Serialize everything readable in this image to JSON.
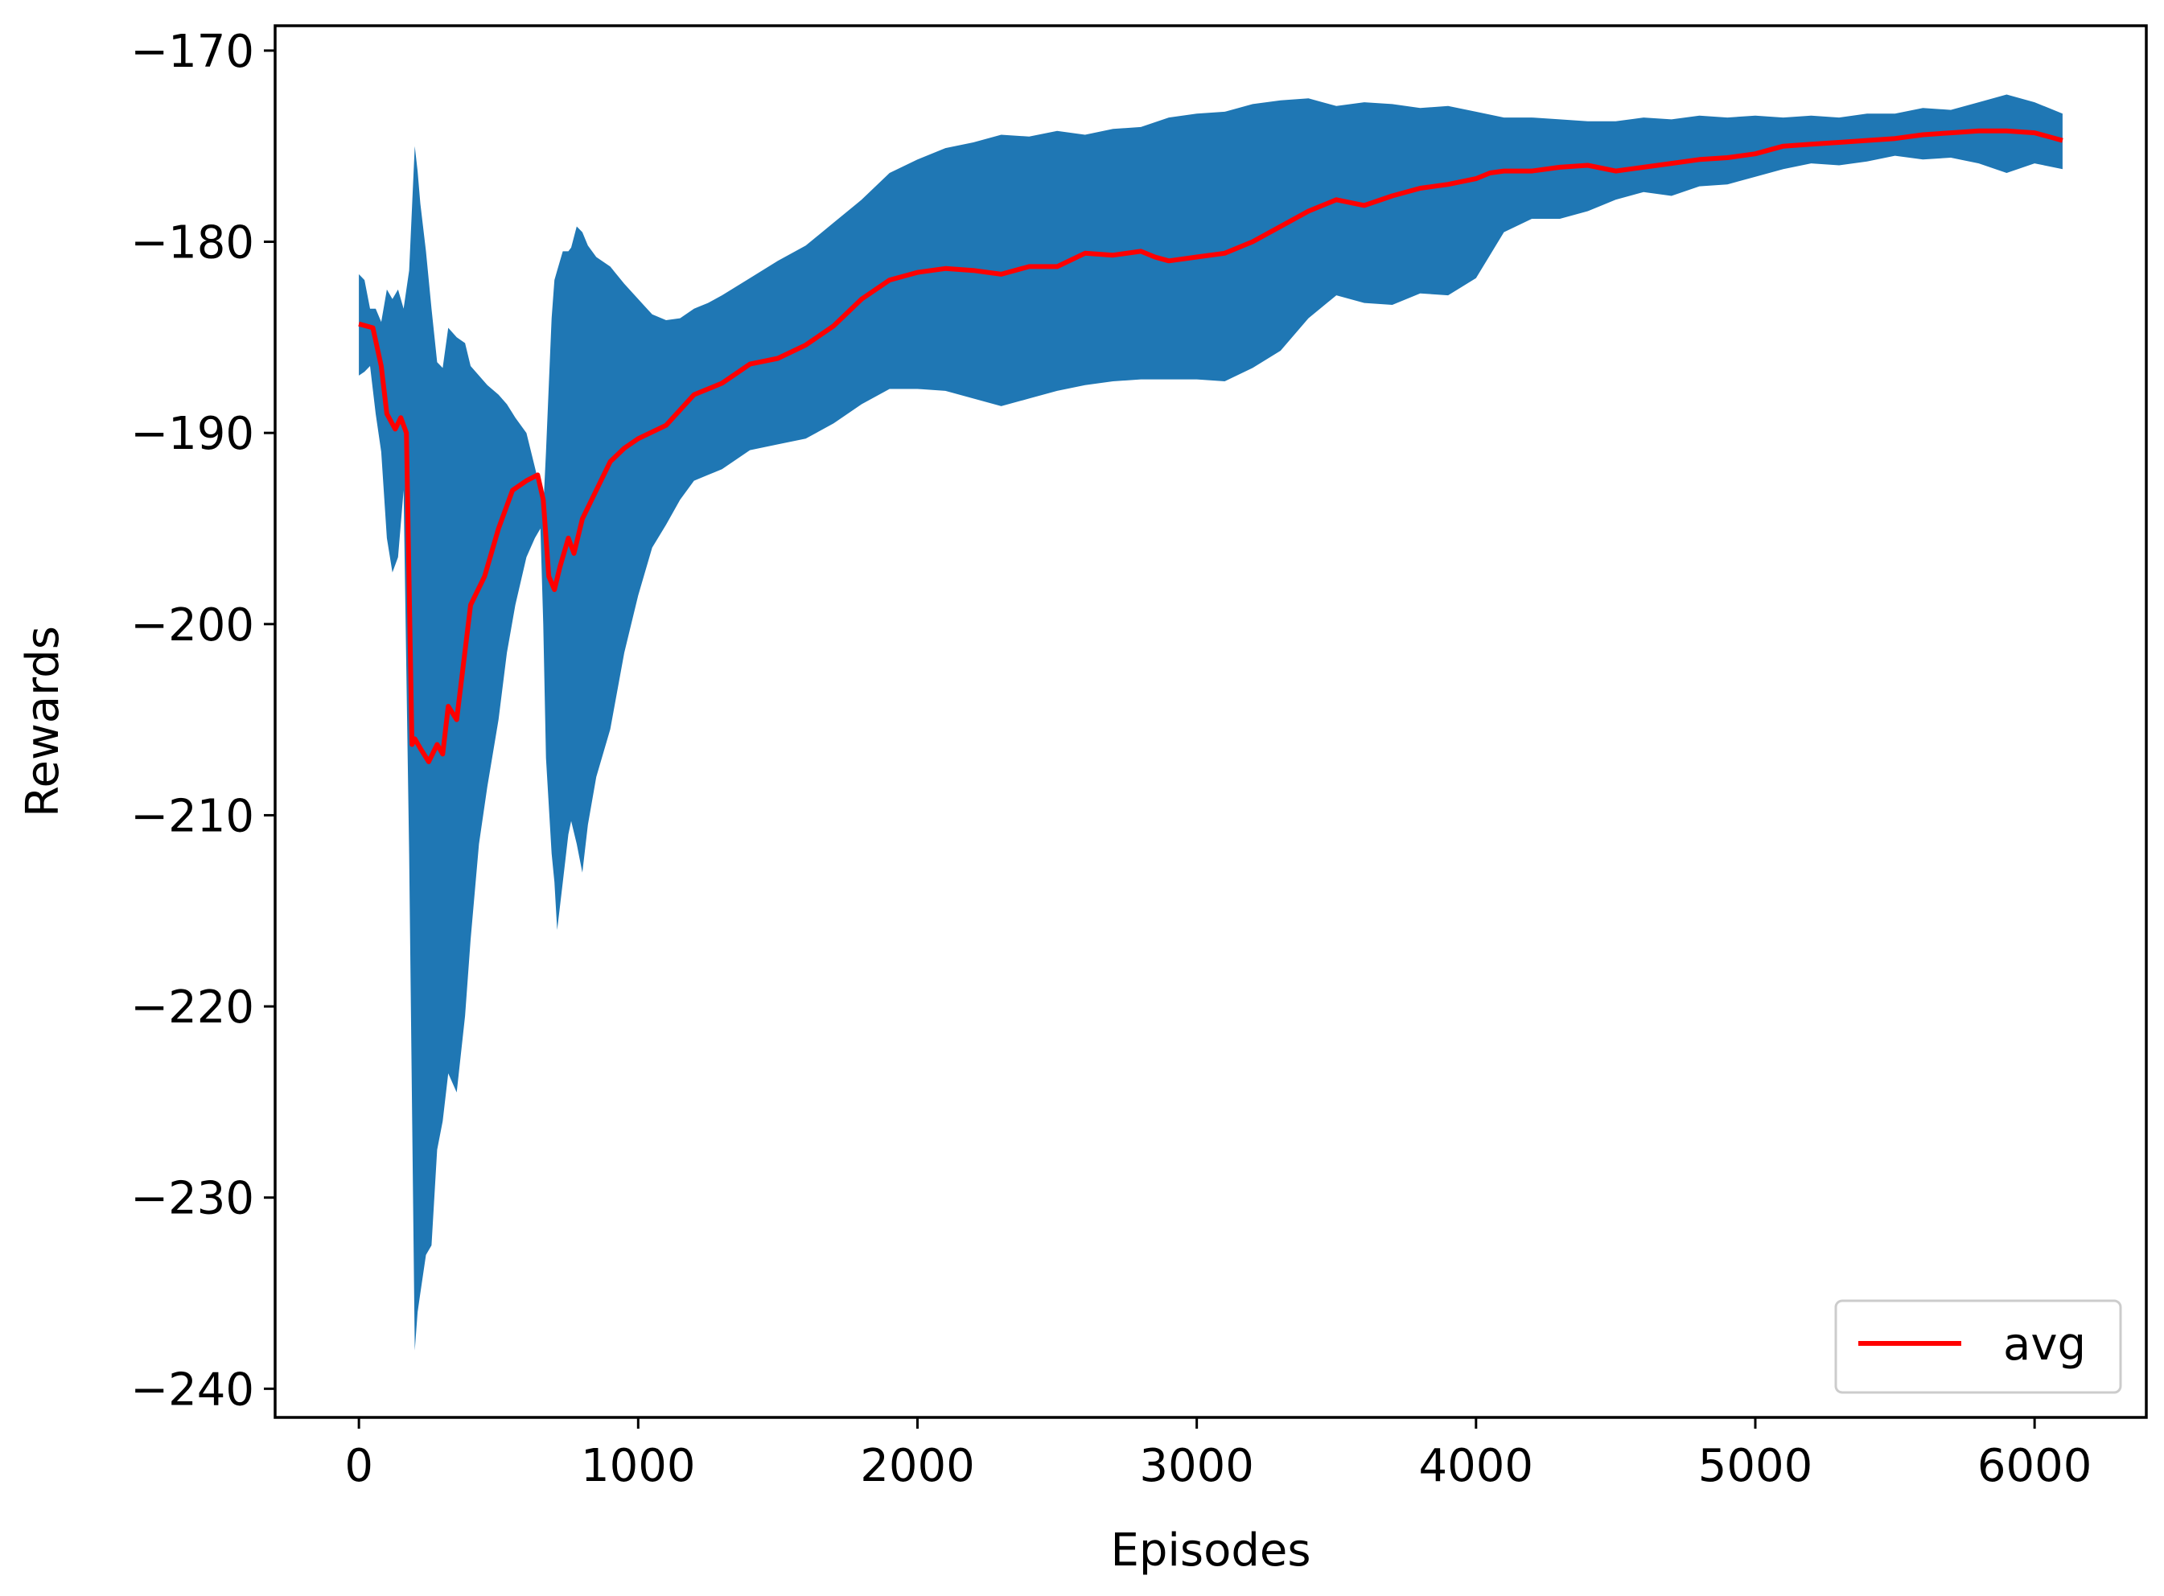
{
  "chart_data": {
    "type": "line",
    "title": "",
    "xlabel": "Episodes",
    "ylabel": "Rewards",
    "xlim": [
      -300,
      6400
    ],
    "ylim": [
      -241.5,
      -168.7
    ],
    "xticks": [
      0,
      1000,
      2000,
      3000,
      4000,
      5000,
      6000
    ],
    "xtick_labels": [
      "0",
      "1000",
      "2000",
      "3000",
      "4000",
      "5000",
      "6000"
    ],
    "yticks": [
      -170,
      -180,
      -190,
      -200,
      -210,
      -220,
      -230,
      -240
    ],
    "ytick_labels": [
      "−170",
      "−180",
      "−190",
      "−200",
      "−210",
      "−220",
      "−230",
      "−240"
    ],
    "grid": false,
    "legend": {
      "position": "lower right",
      "entries": [
        "avg"
      ]
    },
    "colors": {
      "line": "#ff0000",
      "band": "#1f77b4"
    },
    "series": [
      {
        "name": "avg",
        "x": [
          0,
          50,
          80,
          100,
          130,
          150,
          170,
          190,
          200,
          220,
          250,
          280,
          300,
          320,
          350,
          400,
          450,
          500,
          550,
          600,
          640,
          660,
          680,
          700,
          720,
          750,
          770,
          800,
          850,
          900,
          950,
          1000,
          1100,
          1200,
          1300,
          1400,
          1500,
          1600,
          1700,
          1800,
          1900,
          2000,
          2100,
          2200,
          2300,
          2400,
          2500,
          2600,
          2700,
          2800,
          2850,
          2900,
          3000,
          3100,
          3200,
          3300,
          3400,
          3500,
          3600,
          3700,
          3800,
          3900,
          4000,
          4050,
          4100,
          4200,
          4300,
          4400,
          4500,
          4600,
          4700,
          4800,
          4900,
          5000,
          5100,
          5200,
          5300,
          5400,
          5500,
          5600,
          5700,
          5800,
          5900,
          6000,
          6100
        ],
        "values": [
          -184.3,
          -184.5,
          -186.5,
          -189.0,
          -189.8,
          -189.2,
          -190.0,
          -206.3,
          -206.0,
          -206.5,
          -207.2,
          -206.3,
          -206.8,
          -204.3,
          -205.0,
          -199.0,
          -197.5,
          -195.0,
          -193.0,
          -192.5,
          -192.2,
          -193.5,
          -197.5,
          -198.2,
          -197.0,
          -195.5,
          -196.3,
          -194.5,
          -193.0,
          -191.5,
          -190.8,
          -190.3,
          -189.6,
          -188.0,
          -187.4,
          -186.4,
          -186.1,
          -185.4,
          -184.4,
          -183.0,
          -182.0,
          -181.6,
          -181.4,
          -181.5,
          -181.7,
          -181.3,
          -181.3,
          -180.6,
          -180.7,
          -180.5,
          -180.8,
          -181.0,
          -180.8,
          -180.6,
          -180.0,
          -179.2,
          -178.4,
          -177.8,
          -178.1,
          -177.6,
          -177.2,
          -177.0,
          -176.7,
          -176.4,
          -176.3,
          -176.3,
          -176.1,
          -176.0,
          -176.3,
          -176.1,
          -175.9,
          -175.7,
          -175.6,
          -175.4,
          -175.0,
          -174.9,
          -174.8,
          -174.7,
          -174.6,
          -174.4,
          -174.3,
          -174.2,
          -174.2,
          -174.3,
          -174.7
        ]
      }
    ],
    "band": {
      "name": "std",
      "x": [
        0,
        20,
        40,
        60,
        80,
        100,
        120,
        140,
        160,
        180,
        200,
        210,
        220,
        240,
        260,
        280,
        300,
        320,
        350,
        380,
        400,
        430,
        460,
        500,
        530,
        560,
        600,
        630,
        650,
        660,
        670,
        690,
        700,
        710,
        730,
        750,
        760,
        780,
        800,
        820,
        850,
        900,
        950,
        1000,
        1050,
        1100,
        1150,
        1200,
        1250,
        1300,
        1400,
        1500,
        1600,
        1700,
        1800,
        1900,
        2000,
        2100,
        2200,
        2300,
        2400,
        2500,
        2600,
        2700,
        2800,
        2900,
        3000,
        3100,
        3200,
        3300,
        3400,
        3500,
        3600,
        3700,
        3800,
        3900,
        4000,
        4100,
        4200,
        4300,
        4400,
        4500,
        4600,
        4700,
        4800,
        4900,
        5000,
        5100,
        5200,
        5300,
        5400,
        5500,
        5600,
        5700,
        5800,
        5900,
        6000,
        6100
      ],
      "upper": [
        -181.7,
        -182.0,
        -183.5,
        -183.5,
        -184.2,
        -182.5,
        -183.0,
        -182.5,
        -183.5,
        -181.5,
        -175.0,
        -176.3,
        -178.0,
        -180.5,
        -183.5,
        -186.3,
        -186.6,
        -184.5,
        -185.0,
        -185.3,
        -186.5,
        -187.0,
        -187.5,
        -188.0,
        -188.5,
        -189.2,
        -190.0,
        -191.8,
        -193.0,
        -194.0,
        -191.0,
        -184.0,
        -182.0,
        -181.5,
        -180.5,
        -180.5,
        -180.3,
        -179.2,
        -179.5,
        -180.2,
        -180.8,
        -181.3,
        -182.2,
        -183.0,
        -183.8,
        -184.1,
        -184.0,
        -183.5,
        -183.2,
        -182.8,
        -181.9,
        -181.0,
        -180.2,
        -179.0,
        -177.8,
        -176.4,
        -175.7,
        -175.1,
        -174.8,
        -174.4,
        -174.5,
        -174.2,
        -174.4,
        -174.1,
        -174.0,
        -173.5,
        -173.3,
        -173.2,
        -172.8,
        -172.6,
        -172.5,
        -172.9,
        -172.7,
        -172.8,
        -173.0,
        -172.9,
        -173.2,
        -173.5,
        -173.5,
        -173.6,
        -173.7,
        -173.7,
        -173.5,
        -173.6,
        -173.4,
        -173.5,
        -173.4,
        -173.5,
        -173.4,
        -173.5,
        -173.3,
        -173.3,
        -173.0,
        -173.1,
        -172.7,
        -172.3,
        -172.7,
        -173.3
      ],
      "lower": [
        -187.0,
        -186.8,
        -186.5,
        -189.0,
        -191.0,
        -195.5,
        -197.3,
        -196.5,
        -193.0,
        -212.0,
        -238.0,
        -236.0,
        -235.0,
        -233.0,
        -232.5,
        -227.5,
        -226.0,
        -223.5,
        -224.5,
        -220.5,
        -216.5,
        -211.5,
        -208.5,
        -205.0,
        -201.5,
        -199.0,
        -196.5,
        -195.5,
        -195.0,
        -200.0,
        -207.0,
        -212.0,
        -213.5,
        -216.0,
        -213.5,
        -211.0,
        -210.3,
        -211.5,
        -213.0,
        -210.5,
        -208.0,
        -205.5,
        -201.5,
        -198.5,
        -196.0,
        -194.8,
        -193.5,
        -192.5,
        -192.2,
        -191.9,
        -190.9,
        -190.6,
        -190.3,
        -189.5,
        -188.5,
        -187.7,
        -187.7,
        -187.8,
        -188.2,
        -188.6,
        -188.2,
        -187.8,
        -187.5,
        -187.3,
        -187.2,
        -187.2,
        -187.2,
        -187.3,
        -186.6,
        -185.7,
        -184.0,
        -182.8,
        -183.2,
        -183.3,
        -182.7,
        -182.8,
        -181.9,
        -179.5,
        -178.8,
        -178.8,
        -178.4,
        -177.8,
        -177.4,
        -177.6,
        -177.1,
        -177.0,
        -176.6,
        -176.2,
        -175.9,
        -176.0,
        -175.8,
        -175.5,
        -175.7,
        -175.6,
        -175.9,
        -176.4,
        -175.9,
        -176.2
      ]
    }
  }
}
